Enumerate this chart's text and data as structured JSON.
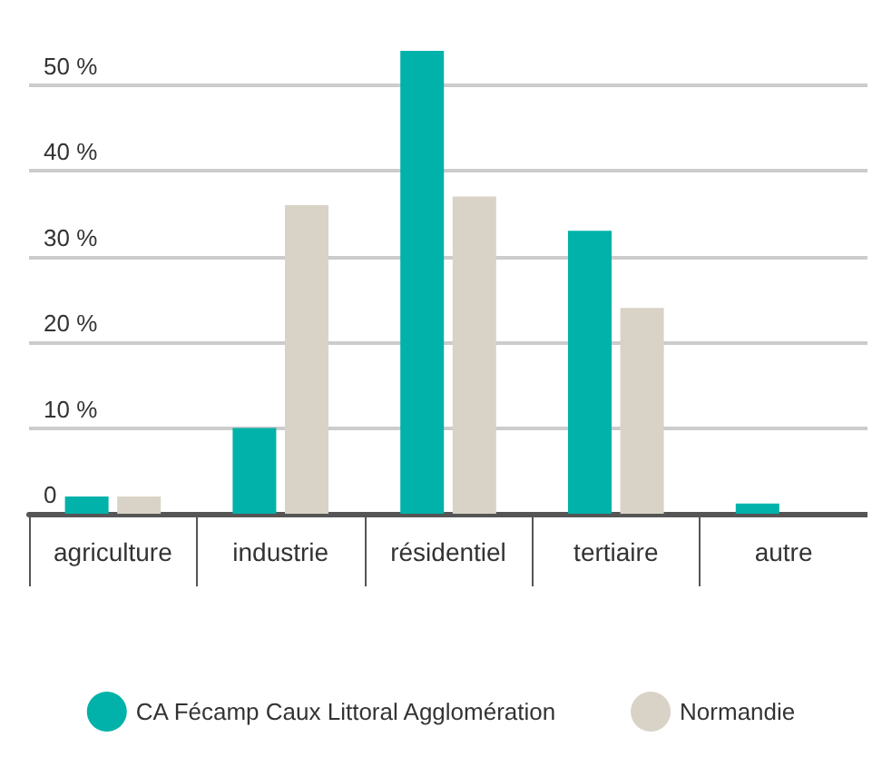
{
  "chart_data": {
    "type": "bar",
    "categories": [
      "agriculture",
      "industrie",
      "résidentiel",
      "tertiaire",
      "autre"
    ],
    "series": [
      {
        "name": "CA Fécamp Caux Littoral Agglomération",
        "color": "#00b2a9",
        "values": [
          2,
          10,
          54,
          33,
          1.2
        ]
      },
      {
        "name": "Normandie",
        "color": "#d9d3c7",
        "values": [
          2,
          36,
          37,
          24,
          0
        ]
      }
    ],
    "yticks": [
      {
        "value": 0,
        "label": "0"
      },
      {
        "value": 10,
        "label": "10 %"
      },
      {
        "value": 20,
        "label": "20 %"
      },
      {
        "value": 30,
        "label": "30 %"
      },
      {
        "value": 40,
        "label": "40 %"
      },
      {
        "value": 50,
        "label": "50 %"
      }
    ],
    "ylim": [
      0,
      54
    ],
    "grid": "y",
    "legend": "bottom"
  }
}
